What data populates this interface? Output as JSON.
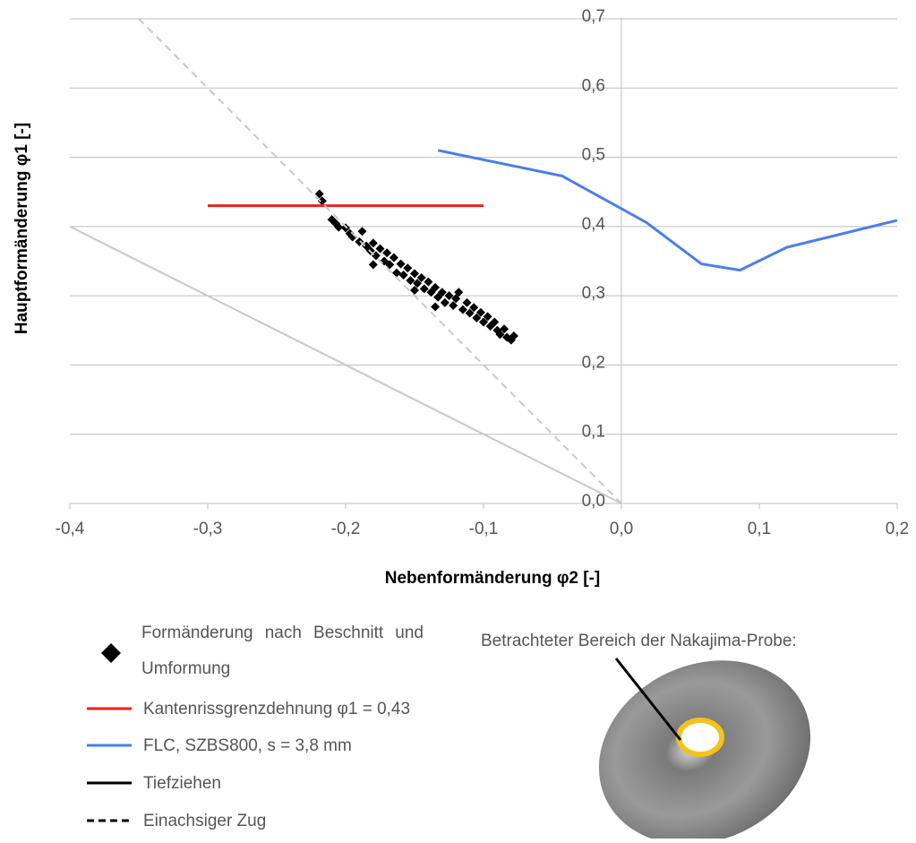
{
  "chart_data": {
    "type": "scatter",
    "x_label": "Nebenformänderung φ2 [-]",
    "y_label": "Hauptformänderung φ1 [-]",
    "xlim": [
      -0.4,
      0.2
    ],
    "ylim": [
      0,
      0.7
    ],
    "xticks": [
      {
        "value": -0.4,
        "label": "-0,4"
      },
      {
        "value": -0.3,
        "label": "-0,3"
      },
      {
        "value": -0.2,
        "label": "-0,2"
      },
      {
        "value": -0.1,
        "label": "-0,1"
      },
      {
        "value": 0,
        "label": "0,0"
      },
      {
        "value": 0.1,
        "label": "0,1"
      },
      {
        "value": 0.2,
        "label": "0,2"
      }
    ],
    "yticks": [
      {
        "value": 0,
        "label": "0,0"
      },
      {
        "value": 0.1,
        "label": "0,1"
      },
      {
        "value": 0.2,
        "label": "0,2"
      },
      {
        "value": 0.3,
        "label": "0,3"
      },
      {
        "value": 0.4,
        "label": "0,4"
      },
      {
        "value": 0.5,
        "label": "0,5"
      },
      {
        "value": 0.6,
        "label": "0,6"
      },
      {
        "value": 0.7,
        "label": "0,7"
      }
    ],
    "grid": true,
    "legend": "bottom-left",
    "annotation": "Betrachteter Bereich der Nakajima-Probe:",
    "series": [
      {
        "name": "Formänderung nach Beschnitt und Umformung",
        "kind": "scatter",
        "color": "#000000",
        "x": [
          -0.219,
          -0.217,
          -0.21,
          -0.207,
          -0.205,
          -0.2,
          -0.197,
          -0.195,
          -0.19,
          -0.188,
          -0.185,
          -0.182,
          -0.18,
          -0.178,
          -0.175,
          -0.172,
          -0.17,
          -0.168,
          -0.165,
          -0.163,
          -0.16,
          -0.158,
          -0.155,
          -0.153,
          -0.15,
          -0.148,
          -0.145,
          -0.143,
          -0.14,
          -0.138,
          -0.135,
          -0.133,
          -0.13,
          -0.128,
          -0.125,
          -0.122,
          -0.12,
          -0.118,
          -0.115,
          -0.112,
          -0.11,
          -0.107,
          -0.105,
          -0.102,
          -0.1,
          -0.097,
          -0.095,
          -0.092,
          -0.09,
          -0.088,
          -0.085,
          -0.083,
          -0.08,
          -0.078,
          -0.18,
          -0.15,
          -0.135
        ],
        "values": [
          0.447,
          0.437,
          0.41,
          0.404,
          0.399,
          0.398,
          0.39,
          0.385,
          0.378,
          0.393,
          0.372,
          0.365,
          0.376,
          0.358,
          0.368,
          0.35,
          0.362,
          0.345,
          0.355,
          0.333,
          0.346,
          0.33,
          0.34,
          0.322,
          0.332,
          0.318,
          0.326,
          0.31,
          0.32,
          0.305,
          0.312,
          0.298,
          0.305,
          0.29,
          0.3,
          0.286,
          0.296,
          0.305,
          0.28,
          0.29,
          0.275,
          0.283,
          0.268,
          0.276,
          0.262,
          0.27,
          0.256,
          0.262,
          0.25,
          0.244,
          0.252,
          0.24,
          0.236,
          0.242,
          0.345,
          0.308,
          0.284
        ]
      },
      {
        "name": "Kantenrissgrenzdehnung φ1 = 0,43",
        "kind": "line",
        "color": "#e8231e",
        "x": [
          -0.3,
          -0.1
        ],
        "values": [
          0.43,
          0.43
        ]
      },
      {
        "name": "FLC, SZBS800, s = 3,8 mm",
        "kind": "line",
        "color": "#4a7ee8",
        "x": [
          -0.133,
          -0.043,
          0.018,
          0.058,
          0.086,
          0.12,
          0.2
        ],
        "values": [
          0.51,
          0.473,
          0.406,
          0.346,
          0.337,
          0.37,
          0.409
        ]
      },
      {
        "name": "Tiefziehen",
        "kind": "line",
        "color": "#c8c8c8",
        "legend_color": "#000000",
        "x": [
          -0.4,
          0
        ],
        "values": [
          0.4,
          0
        ]
      },
      {
        "name": "Einachsiger Zug",
        "kind": "line",
        "dash": true,
        "color": "#c8c8c8",
        "legend_color": "#000000",
        "x": [
          -0.35,
          0
        ],
        "values": [
          0.7,
          0
        ]
      }
    ]
  }
}
